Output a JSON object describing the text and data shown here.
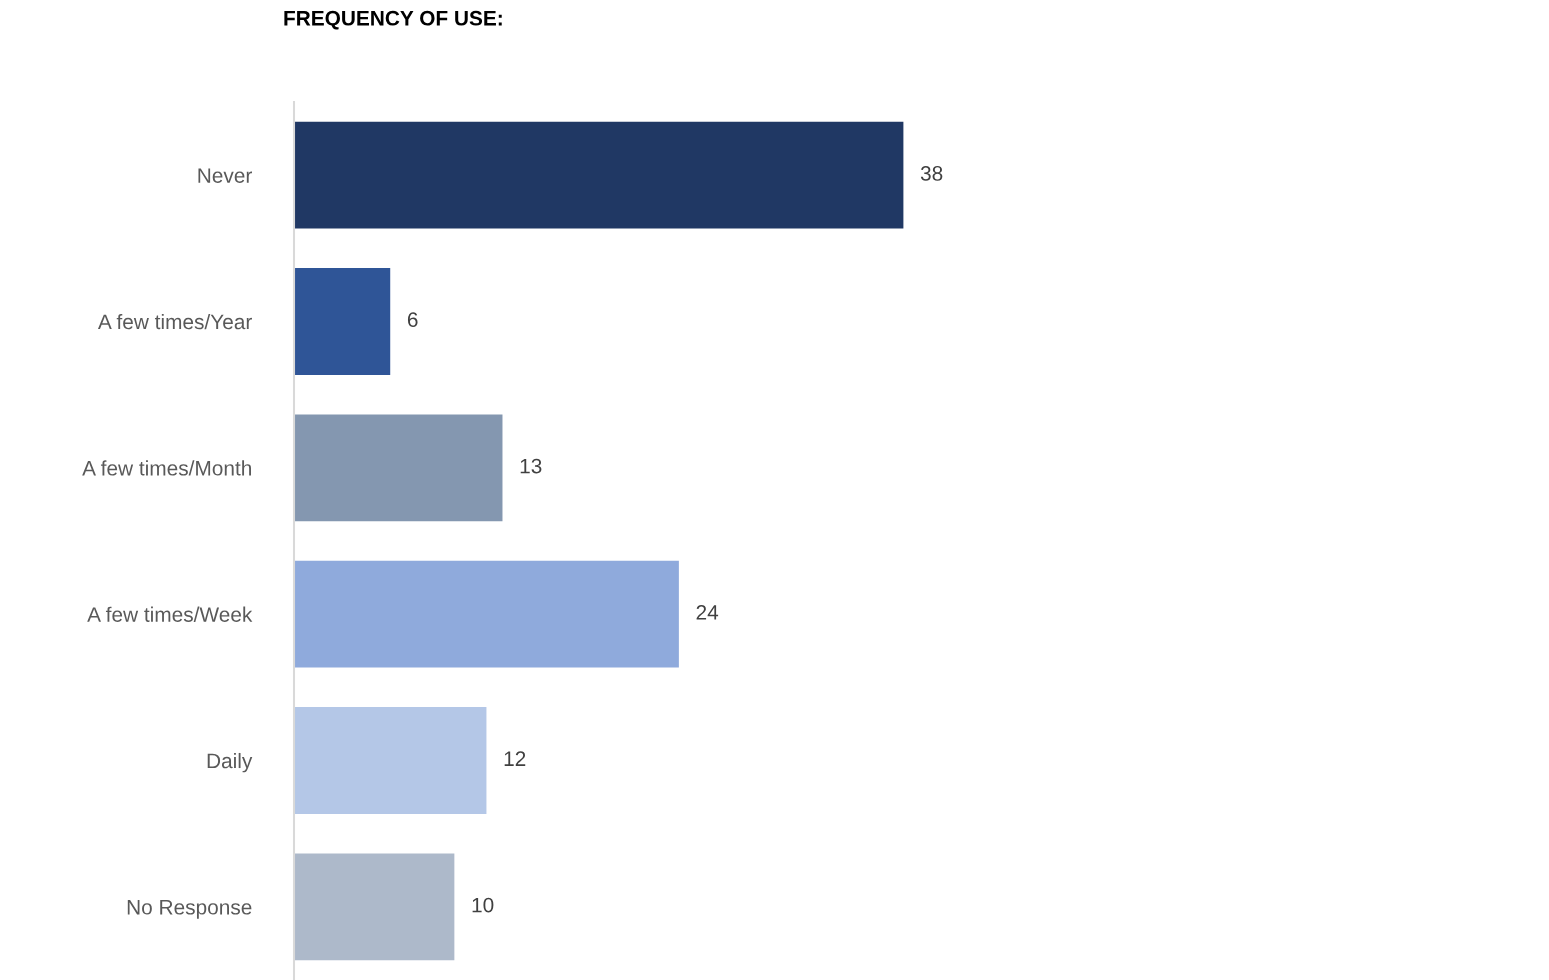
{
  "chart_data": {
    "type": "bar",
    "orientation": "horizontal",
    "title": "FREQUENCY OF USE:",
    "categories": [
      "Never",
      "A few times/Year",
      "A few times/Month",
      "A few times/Week",
      "Daily",
      "No Response"
    ],
    "values": [
      38,
      6,
      13,
      24,
      12,
      10
    ],
    "colors": [
      "#203864",
      "#2f5597",
      "#8497b0",
      "#8faadc",
      "#b4c7e7",
      "#adb9ca"
    ],
    "data_labels": true,
    "grid": false,
    "legend": false
  }
}
